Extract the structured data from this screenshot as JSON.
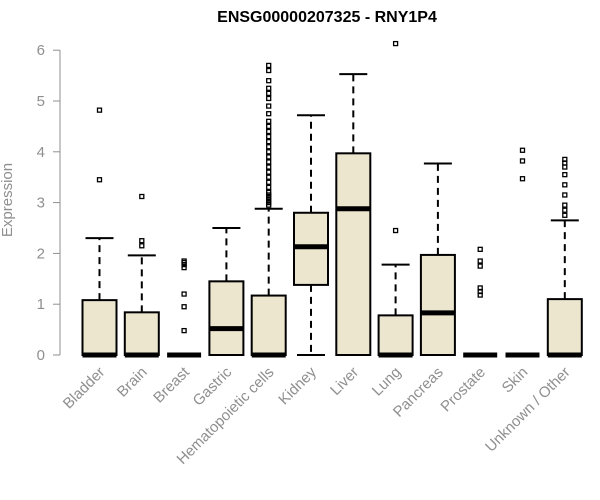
{
  "chart_data": {
    "type": "box",
    "title": "ENSG00000207325 - RNY1P4",
    "xlabel": "",
    "ylabel": "Expression",
    "ylim": [
      0,
      6.2
    ],
    "yticks": [
      0,
      1,
      2,
      3,
      4,
      5,
      6
    ],
    "colors": {
      "box_fill": "#ede6cf",
      "box_stroke": "#000000",
      "axis": "#8f8f8f",
      "text": "#8f8f8f"
    },
    "categories": [
      "Bladder",
      "Brain",
      "Breast",
      "Gastric",
      "Hematopoietic cells",
      "Kidney",
      "Liver",
      "Lung",
      "Pancreas",
      "Prostate",
      "Skin",
      "Unknown / Other"
    ],
    "boxes": [
      {
        "name": "Bladder",
        "whisker_low": 0,
        "q1": 0,
        "median": 0,
        "q3": 1.08,
        "whisker_high": 2.3,
        "outliers": [
          3.45,
          4.82
        ]
      },
      {
        "name": "Brain",
        "whisker_low": 0,
        "q1": 0,
        "median": 0,
        "q3": 0.84,
        "whisker_high": 1.96,
        "outliers": [
          2.15,
          2.25,
          3.12
        ]
      },
      {
        "name": "Breast",
        "whisker_low": 0,
        "q1": 0,
        "median": 0,
        "q3": 0,
        "whisker_high": 0,
        "outliers": [
          0.48,
          0.95,
          1.2,
          1.72,
          1.78,
          1.82,
          1.85
        ]
      },
      {
        "name": "Gastric",
        "whisker_low": 0,
        "q1": 0,
        "median": 0.52,
        "q3": 1.45,
        "whisker_high": 2.5,
        "outliers": []
      },
      {
        "name": "Hematopoietic cells",
        "whisker_low": 0,
        "q1": 0,
        "median": 0,
        "q3": 1.17,
        "whisker_high": 2.88,
        "outliers": [
          2.95,
          3.0,
          3.05,
          3.1,
          3.15,
          3.2,
          3.3,
          3.4,
          3.5,
          3.6,
          3.7,
          3.8,
          3.9,
          4.0,
          4.1,
          4.2,
          4.3,
          4.4,
          4.5,
          4.6,
          4.75,
          4.9,
          5.05,
          5.15,
          5.25,
          5.4,
          5.6,
          5.7
        ]
      },
      {
        "name": "Kidney",
        "whisker_low": 0,
        "q1": 1.38,
        "median": 2.13,
        "q3": 2.8,
        "whisker_high": 4.72,
        "outliers": []
      },
      {
        "name": "Liver",
        "whisker_low": 0,
        "q1": 0,
        "median": 2.88,
        "q3": 3.97,
        "whisker_high": 5.53,
        "outliers": []
      },
      {
        "name": "Lung",
        "whisker_low": 0,
        "q1": 0,
        "median": 0,
        "q3": 0.78,
        "whisker_high": 1.78,
        "outliers": [
          2.45,
          6.13
        ]
      },
      {
        "name": "Pancreas",
        "whisker_low": 0,
        "q1": 0,
        "median": 0.83,
        "q3": 1.97,
        "whisker_high": 3.77,
        "outliers": []
      },
      {
        "name": "Prostate",
        "whisker_low": 0,
        "q1": 0,
        "median": 0,
        "q3": 0,
        "whisker_high": 0,
        "outliers": [
          1.18,
          1.25,
          1.32,
          1.75,
          1.85,
          2.08
        ]
      },
      {
        "name": "Skin",
        "whisker_low": 0,
        "q1": 0,
        "median": 0,
        "q3": 0,
        "whisker_high": 0,
        "outliers": [
          3.47,
          3.82,
          4.03
        ]
      },
      {
        "name": "Unknown / Other",
        "whisker_low": 0,
        "q1": 0,
        "median": 0,
        "q3": 1.1,
        "whisker_high": 2.65,
        "outliers": [
          2.75,
          2.85,
          2.95,
          3.15,
          3.35,
          3.55,
          3.7,
          3.78,
          3.85
        ]
      }
    ]
  }
}
